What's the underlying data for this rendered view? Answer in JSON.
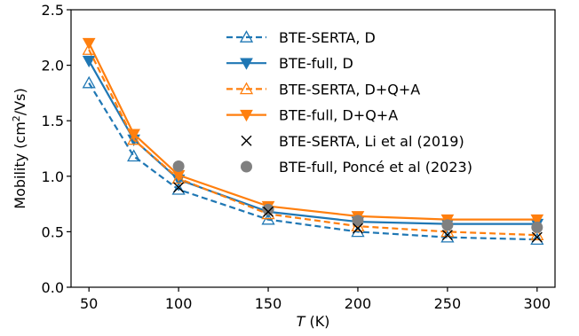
{
  "chart_data": {
    "type": "line",
    "xlabel": "T (K)",
    "ylabel": "Mobility (cm2/Vs)",
    "xlim": [
      40,
      310
    ],
    "ylim": [
      0.0,
      2.5
    ],
    "xticks": [
      50,
      100,
      150,
      200,
      250,
      300
    ],
    "yticks": [
      0.0,
      0.5,
      1.0,
      1.5,
      2.0,
      2.5
    ],
    "xtick_labels": [
      "50",
      "100",
      "150",
      "200",
      "250",
      "300"
    ],
    "ytick_labels": [
      "0.0",
      "0.5",
      "1.0",
      "1.5",
      "2.0",
      "2.5"
    ],
    "grid": false,
    "legend_position": "top-right",
    "series": [
      {
        "name": "BTE-SERTA, D",
        "color": "#1f77b4",
        "line": "dashed",
        "marker": "triangle-up-open",
        "x": [
          50,
          75,
          100,
          150,
          200,
          250,
          300
        ],
        "y": [
          1.84,
          1.18,
          0.88,
          0.61,
          0.5,
          0.45,
          0.43
        ]
      },
      {
        "name": "BTE-full, D",
        "color": "#1f77b4",
        "line": "solid",
        "marker": "triangle-down-filled",
        "x": [
          50,
          75,
          100,
          150,
          200,
          250,
          300
        ],
        "y": [
          2.04,
          1.33,
          0.97,
          0.68,
          0.59,
          0.57,
          0.57
        ]
      },
      {
        "name": "BTE-SERTA, D+Q+A",
        "color": "#ff7f0e",
        "line": "dashed",
        "marker": "triangle-up-open",
        "x": [
          50,
          75,
          100,
          150,
          200,
          250,
          300
        ],
        "y": [
          2.14,
          1.33,
          0.98,
          0.66,
          0.55,
          0.5,
          0.47
        ]
      },
      {
        "name": "BTE-full, D+Q+A",
        "color": "#ff7f0e",
        "line": "solid",
        "marker": "triangle-down-filled",
        "x": [
          50,
          75,
          100,
          150,
          200,
          250,
          300
        ],
        "y": [
          2.2,
          1.38,
          1.01,
          0.73,
          0.64,
          0.61,
          0.61
        ]
      },
      {
        "name": "BTE-SERTA, Li et al (2019)",
        "color": "#000000",
        "line": "none",
        "marker": "x",
        "x": [
          100,
          150,
          200,
          250,
          300
        ],
        "y": [
          0.9,
          0.68,
          0.53,
          0.47,
          0.45
        ]
      },
      {
        "name": "BTE-full, Poncé et al (2023)",
        "color": "#808080",
        "line": "none",
        "marker": "circle-filled",
        "x": [
          100,
          150,
          200,
          250,
          300
        ],
        "y": [
          1.09,
          0.7,
          0.6,
          0.56,
          0.54
        ]
      }
    ]
  }
}
